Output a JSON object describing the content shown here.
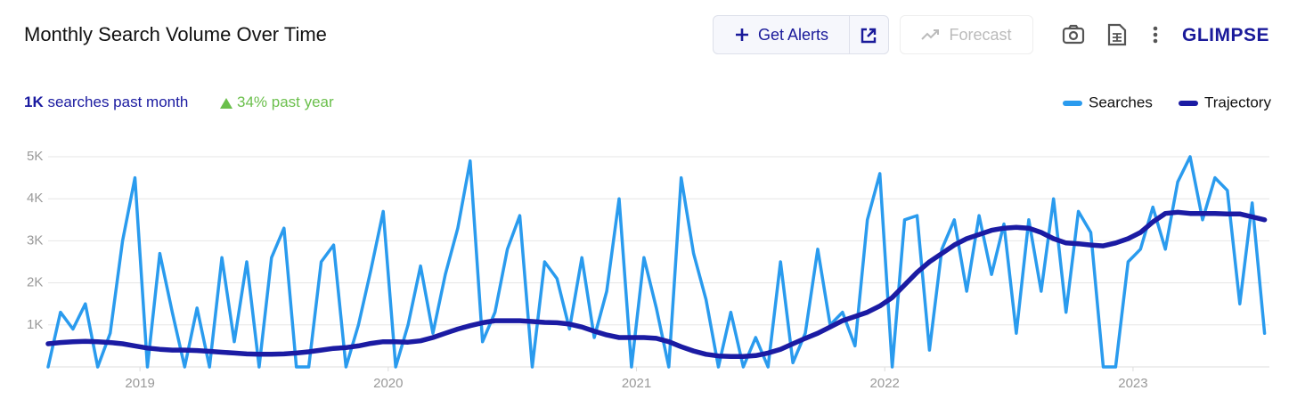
{
  "header": {
    "title": "Monthly Search Volume Over Time",
    "alerts_button": "Get Alerts",
    "forecast_button": "Forecast",
    "logo": "GLIMPSE"
  },
  "stats": {
    "monthly_value": "1K",
    "monthly_label": "searches past month",
    "yearly": "34% past year"
  },
  "chart_data": {
    "type": "line",
    "x": [
      2018.63,
      2018.68,
      2018.73,
      2018.78,
      2018.83,
      2018.88,
      2018.93,
      2018.98,
      2019.03,
      2019.08,
      2019.13,
      2019.18,
      2019.23,
      2019.28,
      2019.33,
      2019.38,
      2019.43,
      2019.48,
      2019.53,
      2019.58,
      2019.63,
      2019.68,
      2019.73,
      2019.78,
      2019.83,
      2019.88,
      2019.93,
      2019.98,
      2020.03,
      2020.08,
      2020.13,
      2020.18,
      2020.23,
      2020.28,
      2020.33,
      2020.38,
      2020.43,
      2020.48,
      2020.53,
      2020.58,
      2020.63,
      2020.68,
      2020.73,
      2020.78,
      2020.83,
      2020.88,
      2020.93,
      2020.98,
      2021.03,
      2021.08,
      2021.13,
      2021.18,
      2021.23,
      2021.28,
      2021.33,
      2021.38,
      2021.43,
      2021.48,
      2021.53,
      2021.58,
      2021.63,
      2021.68,
      2021.73,
      2021.78,
      2021.83,
      2021.88,
      2021.93,
      2021.98,
      2022.03,
      2022.08,
      2022.13,
      2022.18,
      2022.23,
      2022.28,
      2022.33,
      2022.38,
      2022.43,
      2022.48,
      2022.53,
      2022.58,
      2022.63,
      2022.68,
      2022.73,
      2022.78,
      2022.83,
      2022.88,
      2022.93,
      2022.98,
      2023.03,
      2023.08,
      2023.13,
      2023.18,
      2023.23,
      2023.28,
      2023.33,
      2023.38,
      2023.43,
      2023.48,
      2023.53
    ],
    "series": [
      {
        "name": "Searches",
        "color": "#2a9bee",
        "values": [
          0,
          1300,
          900,
          1500,
          0,
          800,
          3000,
          4500,
          0,
          2700,
          1300,
          0,
          1400,
          0,
          2600,
          600,
          2500,
          0,
          2600,
          3300,
          0,
          0,
          2500,
          2900,
          0,
          1000,
          2300,
          3700,
          0,
          1000,
          2400,
          800,
          2200,
          3300,
          4900,
          600,
          1300,
          2800,
          3600,
          0,
          2500,
          2100,
          900,
          2600,
          700,
          1800,
          4000,
          0,
          2600,
          1400,
          0,
          4500,
          2700,
          1600,
          0,
          1300,
          0,
          700,
          0,
          2500,
          100,
          800,
          2800,
          1000,
          1300,
          500,
          3500,
          4600,
          0,
          3500,
          3600,
          400,
          2800,
          3500,
          1800,
          3600,
          2200,
          3400,
          800,
          3500,
          1800,
          4000,
          1300,
          3700,
          3200,
          0,
          0,
          2500,
          2800,
          3800,
          2800,
          4400,
          5000,
          3500,
          4500,
          4200,
          1500,
          3900,
          800
        ]
      },
      {
        "name": "Trajectory",
        "color": "#1b1ba3",
        "values": [
          550,
          580,
          600,
          610,
          600,
          580,
          550,
          500,
          450,
          420,
          400,
          400,
          390,
          370,
          350,
          330,
          310,
          300,
          300,
          310,
          330,
          360,
          400,
          440,
          460,
          500,
          560,
          600,
          600,
          590,
          620,
          700,
          800,
          900,
          980,
          1050,
          1100,
          1100,
          1100,
          1080,
          1060,
          1050,
          1020,
          950,
          850,
          760,
          700,
          700,
          700,
          680,
          600,
          480,
          380,
          300,
          260,
          250,
          250,
          270,
          330,
          420,
          550,
          680,
          800,
          950,
          1100,
          1200,
          1300,
          1450,
          1650,
          1950,
          2250,
          2500,
          2700,
          2900,
          3050,
          3150,
          3250,
          3300,
          3320,
          3300,
          3200,
          3050,
          2950,
          2930,
          2900,
          2880,
          2950,
          3050,
          3200,
          3450,
          3650,
          3680,
          3650,
          3650,
          3650,
          3640,
          3640,
          3570,
          3500
        ]
      }
    ],
    "xlim": [
      2018.63,
      2023.56
    ],
    "ylim": [
      0,
      5000
    ],
    "xticks": [
      2019,
      2020,
      2021,
      2022,
      2023
    ],
    "yticks": [
      {
        "value": 1000,
        "label": "1K"
      },
      {
        "value": 2000,
        "label": "2K"
      },
      {
        "value": 3000,
        "label": "3K"
      },
      {
        "value": 4000,
        "label": "4K"
      },
      {
        "value": 5000,
        "label": "5K"
      }
    ],
    "grid": true,
    "legend": "top-right"
  }
}
